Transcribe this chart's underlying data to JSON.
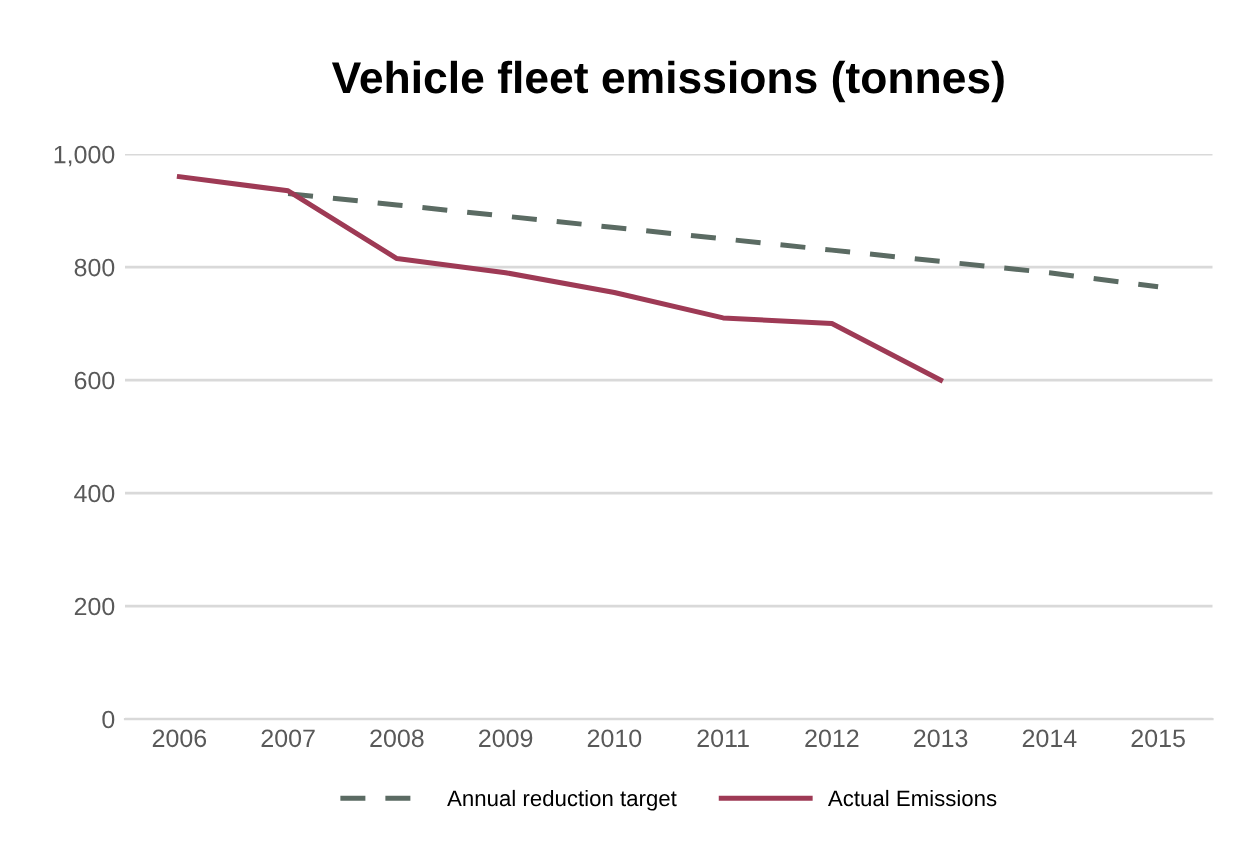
{
  "chart_data": {
    "type": "line",
    "title": "Vehicle fleet emissions (tonnes)",
    "categories": [
      "2006",
      "2007",
      "2008",
      "2009",
      "2010",
      "2011",
      "2012",
      "2013",
      "2014",
      "2015"
    ],
    "series": [
      {
        "name": "Annual reduction target",
        "color": "#5b6b63",
        "line_style": "dashed",
        "values": [
          null,
          930,
          910,
          890,
          870,
          850,
          830,
          810,
          790,
          765
        ]
      },
      {
        "name": "Actual Emissions",
        "color": "#9e3a55",
        "line_style": "solid",
        "values": [
          960,
          935,
          815,
          790,
          755,
          710,
          700,
          600,
          null,
          null
        ]
      }
    ],
    "ylim": [
      0,
      1000
    ],
    "yticks": [
      0,
      200,
      400,
      600,
      800,
      {
        "value": 1000,
        "label": "1,000"
      }
    ],
    "grid": "y",
    "legend": "bottom",
    "marker": "none"
  }
}
